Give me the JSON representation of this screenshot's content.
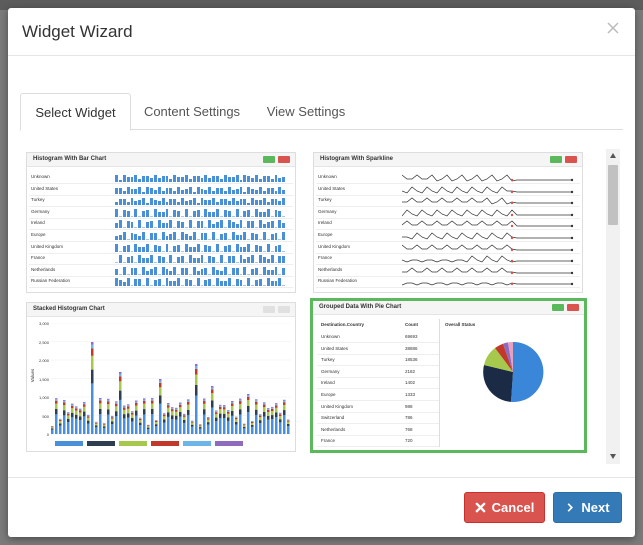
{
  "modal": {
    "title": "Widget Wizard"
  },
  "tabs": [
    {
      "label": "Select Widget",
      "active": true
    },
    {
      "label": "Content Settings",
      "active": false
    },
    {
      "label": "View Settings",
      "active": false
    }
  ],
  "widgets": {
    "histogram_bar": {
      "title": "Histogram With Bar Chart",
      "rows": [
        "Unknown",
        "United States",
        "Turkey",
        "Germany",
        "Ireland",
        "Europe",
        "United Kingdom",
        "France",
        "Netherlands",
        "Russian Federation"
      ]
    },
    "histogram_sparkline": {
      "title": "Histogram With Sparkline",
      "rows": [
        "Unknown",
        "United States",
        "Turkey",
        "Germany",
        "Ireland",
        "Europe",
        "United Kingdom",
        "France",
        "Netherlands",
        "Russian Federation"
      ]
    },
    "stacked_histogram": {
      "title": "Stacked Histogram Chart",
      "ylabel": "Values",
      "yticks": [
        "3,000",
        "2,500",
        "2,000",
        "1,500",
        "1,000",
        "500",
        "0"
      ]
    },
    "grouped_pie": {
      "title": "Grouped Data With Pie Chart",
      "col_headers": [
        "Destination.Country",
        "Count",
        "Overall Status"
      ],
      "rows": [
        {
          "country": "Unknown",
          "count": "69693"
        },
        {
          "country": "United States",
          "count": "38886"
        },
        {
          "country": "Turkey",
          "count": "18536"
        },
        {
          "country": "Germany",
          "count": "2182"
        },
        {
          "country": "Ireland",
          "count": "1402"
        },
        {
          "country": "Europe",
          "count": "1333"
        },
        {
          "country": "United Kingdom",
          "count": "988"
        },
        {
          "country": "Switzerland",
          "count": "786"
        },
        {
          "country": "Netherlands",
          "count": "768"
        },
        {
          "country": "France",
          "count": "720"
        }
      ]
    }
  },
  "footer": {
    "cancel_label": "Cancel",
    "next_label": "Next"
  },
  "colors": {
    "selected_border": "#5cb85c",
    "cancel": "#d9534f",
    "next": "#337ab7",
    "bar": "#4a90d9"
  }
}
